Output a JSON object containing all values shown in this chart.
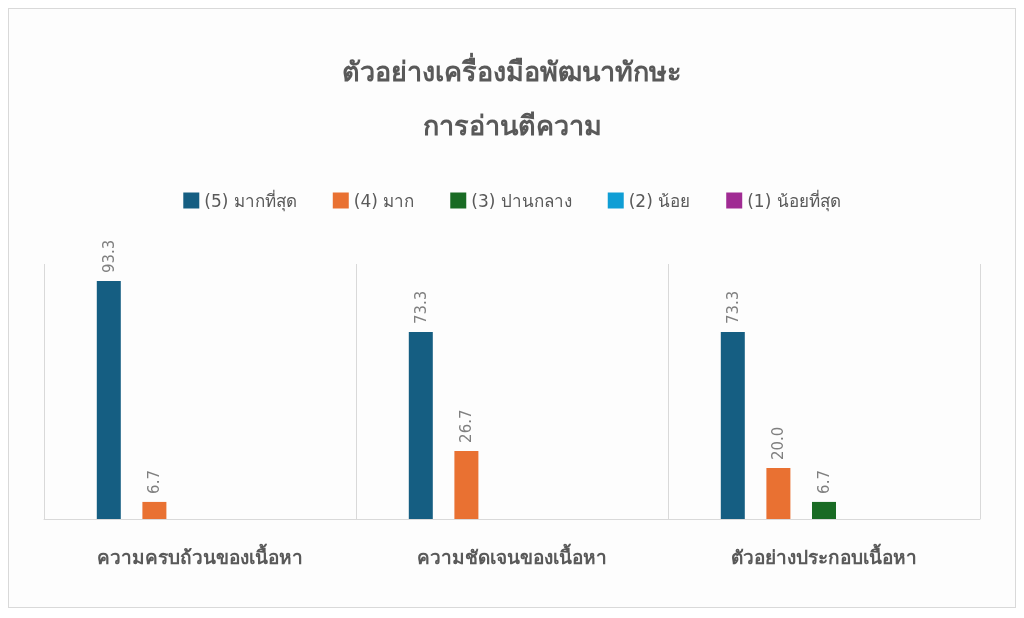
{
  "chart_data": {
    "type": "bar",
    "title": "ตัวอย่างเครื่องมือพัฒนาทักษะ\nการอ่านตีความ",
    "categories": [
      "ความครบถ้วนของเนื้อหา",
      "ความชัดเจนของเนื้อหา",
      "ตัวอย่างประกอบเนื้อหา"
    ],
    "series": [
      {
        "name": "(5) มากที่สุด",
        "color": "#155e82",
        "values": [
          93.3,
          73.3,
          73.3
        ],
        "value_labels": [
          "93.3",
          "73.3",
          "73.3"
        ]
      },
      {
        "name": "(4) มาก",
        "color": "#e97132",
        "values": [
          6.7,
          26.7,
          20.0
        ],
        "value_labels": [
          "6.7",
          "26.7",
          "20.0"
        ]
      },
      {
        "name": "(3) ปานกลาง",
        "color": "#196b24",
        "values": [
          null,
          null,
          6.7
        ],
        "value_labels": [
          null,
          null,
          "6.7"
        ]
      },
      {
        "name": "(2) น้อย",
        "color": "#0f9ed5",
        "values": [
          null,
          null,
          null
        ]
      },
      {
        "name": "(1) น้อยที่สุด",
        "color": "#a02b93",
        "values": [
          null,
          null,
          null
        ]
      }
    ],
    "grid": "x",
    "legend": "top"
  }
}
